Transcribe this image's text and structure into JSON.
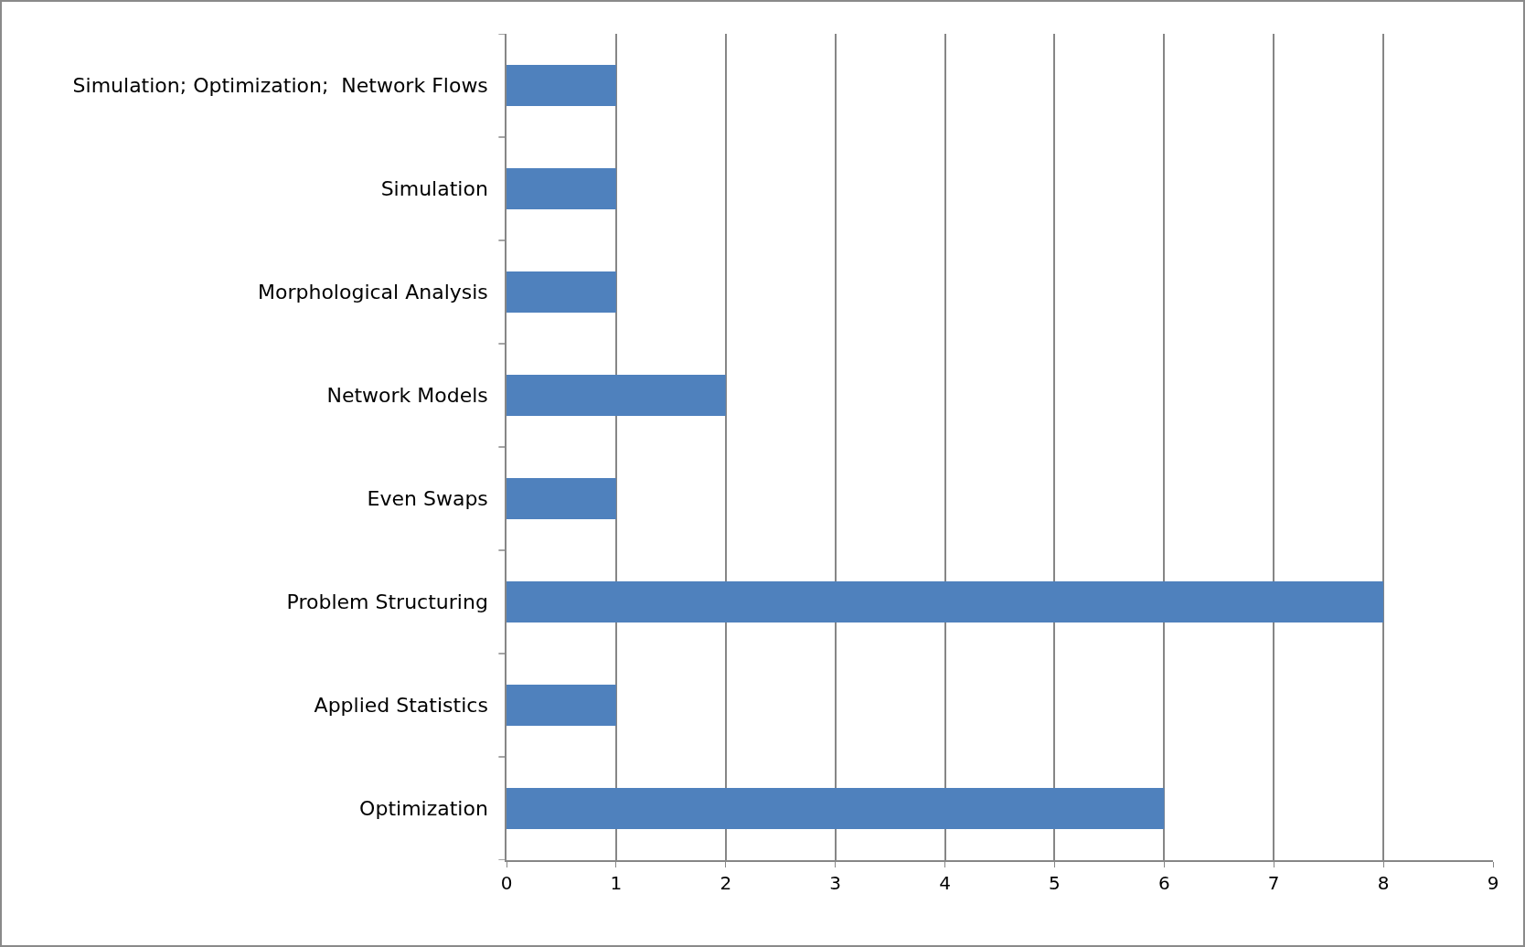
{
  "chart_data": {
    "type": "bar",
    "orientation": "horizontal",
    "categories": [
      "Simulation; Optimization;  Network Flows",
      "Simulation",
      "Morphological Analysis",
      "Network Models",
      "Even Swaps",
      "Problem Structuring",
      "Applied Statistics",
      "Optimization"
    ],
    "values": [
      1,
      1,
      1,
      2,
      1,
      8,
      1,
      6
    ],
    "color": "#4f81bd",
    "xlim": [
      0,
      9
    ],
    "xticks": [
      0,
      1,
      2,
      3,
      4,
      5,
      6,
      7,
      8,
      9
    ],
    "grid": "x",
    "legend": false
  }
}
